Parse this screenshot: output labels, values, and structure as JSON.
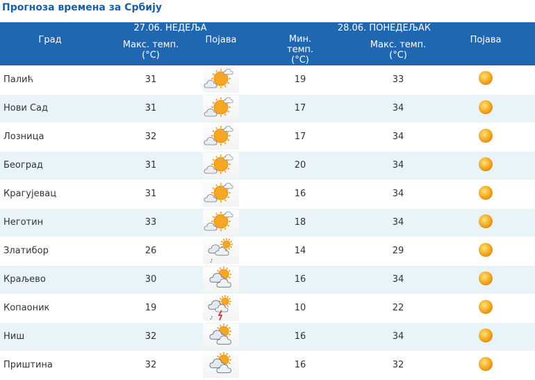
{
  "header": {
    "title": "Прогноза времена за Србију"
  },
  "table": {
    "day1_label": "27.06. НЕДЕЉА",
    "day2_label": "28.06. ПОНЕДЕЉАК",
    "col_city": "Град",
    "col_day1_max": "Макс. темп. (°C)",
    "col_day1_weather": "Појава",
    "col_day2_min": "Мин. темп. (°C)",
    "col_day2_max": "Макс. темп. (°C)",
    "col_day2_weather": "Појава",
    "rows": [
      {
        "city": "Палић",
        "max1": "31",
        "icon1": "sun-cloud-icon",
        "min2": "19",
        "max2": "33",
        "icon2": "sun-icon"
      },
      {
        "city": "Нови Сад",
        "max1": "31",
        "icon1": "sun-cloud-icon",
        "min2": "17",
        "max2": "34",
        "icon2": "sun-icon"
      },
      {
        "city": "Лозница",
        "max1": "32",
        "icon1": "sun-cloud-icon",
        "min2": "17",
        "max2": "34",
        "icon2": "sun-icon"
      },
      {
        "city": "Београд",
        "max1": "31",
        "icon1": "sun-cloud-icon",
        "min2": "20",
        "max2": "34",
        "icon2": "sun-icon"
      },
      {
        "city": "Крагујевац",
        "max1": "31",
        "icon1": "sun-cloud-icon",
        "min2": "16",
        "max2": "34",
        "icon2": "sun-icon"
      },
      {
        "city": "Неготин",
        "max1": "33",
        "icon1": "sun-cloud-icon",
        "min2": "18",
        "max2": "34",
        "icon2": "sun-icon"
      },
      {
        "city": "Златибор",
        "max1": "26",
        "icon1": "cloud-shower-icon",
        "min2": "14",
        "max2": "29",
        "icon2": "sun-icon"
      },
      {
        "city": "Краљево",
        "max1": "30",
        "icon1": "cloud-sun-icon",
        "min2": "16",
        "max2": "34",
        "icon2": "sun-icon"
      },
      {
        "city": "Копаоник",
        "max1": "19",
        "icon1": "cloud-thunderstorm-icon",
        "min2": "10",
        "max2": "22",
        "icon2": "sun-icon"
      },
      {
        "city": "Ниш",
        "max1": "32",
        "icon1": "cloud-sun-icon",
        "min2": "16",
        "max2": "34",
        "icon2": "sun-icon"
      },
      {
        "city": "Приштина",
        "max1": "32",
        "icon1": "cloud-sun-icon",
        "min2": "16",
        "max2": "32",
        "icon2": "sun-icon"
      }
    ]
  },
  "colors": {
    "header_bg": "#1f67b1",
    "title": "#1b5fa8",
    "row_alt": "#e9f4f9",
    "sun": "#f2a623"
  }
}
